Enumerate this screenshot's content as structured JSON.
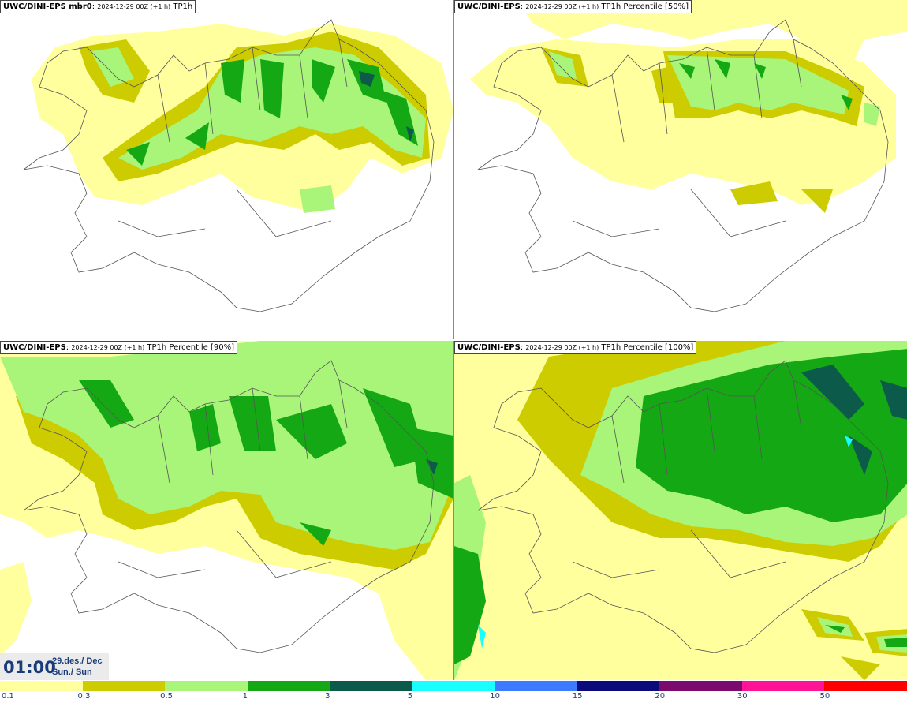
{
  "panels": [
    {
      "model": "UWC/DINI-EPS mbr0",
      "run": "2024-12-29 00Z (+1 h)",
      "field": "TP1h"
    },
    {
      "model": "UWC/DINI-EPS",
      "run": "2024-12-29 00Z (+1 h)",
      "field": "TP1h Percentile [50%]"
    },
    {
      "model": "UWC/DINI-EPS",
      "run": "2024-12-29 00Z (+1 h)",
      "field": "TP1h Percentile [90%]"
    },
    {
      "model": "UWC/DINI-EPS",
      "run": "2024-12-29 00Z (+1 h)",
      "field": "TP1h Percentile [100%]"
    }
  ],
  "time": {
    "hour": "01:00",
    "date_line1": "29.des./ Dec",
    "date_line2": "Sun./ Sun"
  },
  "legend": {
    "colors": [
      "#ffff9e",
      "#cccc00",
      "#a8f57a",
      "#14a814",
      "#0c5a4a",
      "#19ffff",
      "#3c7aff",
      "#0a0a7a",
      "#7a0a6e",
      "#ff1496",
      "#ff0000"
    ],
    "ticks": [
      "0.1",
      "0.3",
      "0.5",
      "1",
      "3",
      "5",
      "10",
      "15",
      "20",
      "30",
      "50"
    ]
  }
}
